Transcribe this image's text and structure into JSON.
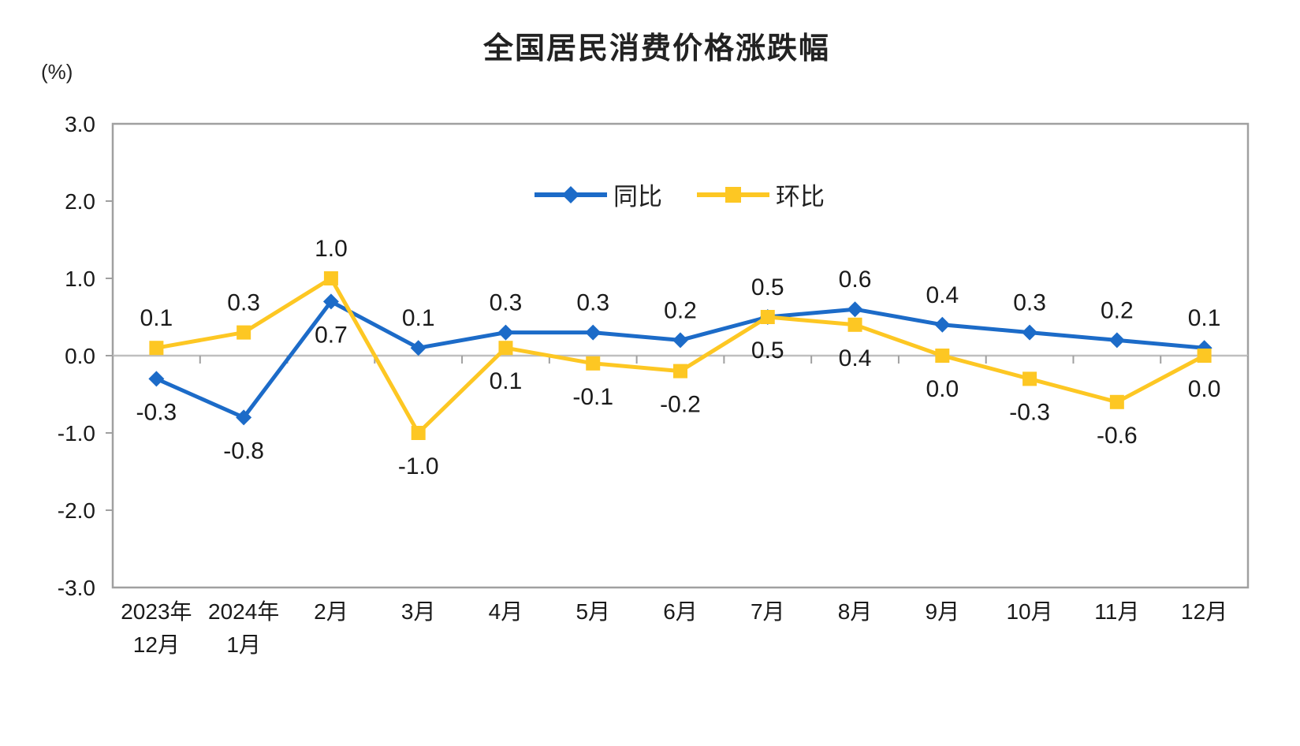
{
  "chart_data": {
    "type": "line",
    "title": "全国居民消费价格涨跌幅",
    "unit_label": "(%)",
    "legend_position": "top-center-inside",
    "grid": false,
    "ylim": [
      -3.0,
      3.0
    ],
    "y_ticks": [
      "3.0",
      "2.0",
      "1.0",
      "0.0",
      "-1.0",
      "-2.0",
      "-3.0"
    ],
    "categories": [
      [
        "2023年",
        "12月"
      ],
      [
        "2024年",
        "1月"
      ],
      [
        "2月"
      ],
      [
        "3月"
      ],
      [
        "4月"
      ],
      [
        "5月"
      ],
      [
        "6月"
      ],
      [
        "7月"
      ],
      [
        "8月"
      ],
      [
        "9月"
      ],
      [
        "10月"
      ],
      [
        "11月"
      ],
      [
        "12月"
      ]
    ],
    "series": [
      {
        "name": "同比",
        "color": "#1C6BC8",
        "marker": "diamond",
        "values": [
          -0.3,
          -0.8,
          0.7,
          0.1,
          0.3,
          0.3,
          0.2,
          0.5,
          0.6,
          0.4,
          0.3,
          0.2,
          0.1
        ],
        "labels": [
          "-0.3",
          "-0.8",
          "0.7",
          "0.1",
          "0.3",
          "0.3",
          "0.2",
          "0.5",
          "0.6",
          "0.4",
          "0.3",
          "0.2",
          "0.1"
        ],
        "label_positions": [
          "below",
          "below",
          "below",
          "above",
          "above",
          "above",
          "above",
          "above",
          "above",
          "above",
          "above",
          "above",
          "above"
        ]
      },
      {
        "name": "环比",
        "color": "#FDC723",
        "marker": "square",
        "values": [
          0.1,
          0.3,
          1.0,
          -1.0,
          0.1,
          -0.1,
          -0.2,
          0.5,
          0.4,
          0.0,
          -0.3,
          -0.6,
          0.0
        ],
        "labels": [
          "0.1",
          "0.3",
          "1.0",
          "-1.0",
          "0.1",
          "-0.1",
          "-0.2",
          "0.5",
          "0.4",
          "0.0",
          "-0.3",
          "-0.6",
          "0.0"
        ],
        "label_positions": [
          "above",
          "above",
          "above",
          "below",
          "below",
          "below",
          "below",
          "below",
          "below",
          "below",
          "below",
          "below",
          "below"
        ]
      }
    ],
    "axis_colors": {
      "plot_border": "#A0A0A0",
      "zero_line": "#BFBFBF",
      "tick": "#A0A0A0",
      "label_text": "#1a1a1a"
    }
  }
}
